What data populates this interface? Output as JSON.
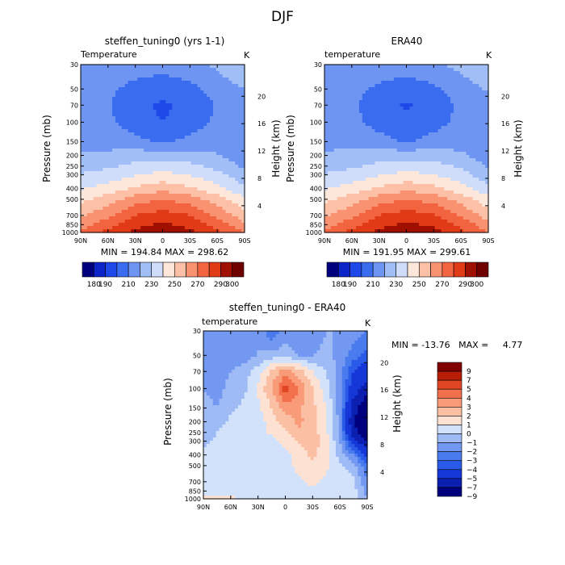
{
  "figure_title": "DJF",
  "chart_data": [
    {
      "type": "heatmap",
      "title": "steffen_tuning0 (yrs 1-1)",
      "variable_label": "Temperature",
      "units_label": "K",
      "ylabel": "Pressure (mb)",
      "ylabel_right": "Height (km)",
      "x_ticks": [
        "90N",
        "60N",
        "30N",
        "0",
        "30S",
        "60S",
        "90S"
      ],
      "y_ticks": [
        "30",
        "50",
        "70",
        "100",
        "150",
        "200",
        "250",
        "300",
        "400",
        "500",
        "700",
        "850",
        "1000"
      ],
      "y_ticks_right": [
        "4",
        "8",
        "12",
        "16",
        "20"
      ],
      "x": [
        90,
        60,
        30,
        0,
        -30,
        -60,
        -90
      ],
      "y": [
        1000,
        850,
        700,
        500,
        400,
        300,
        250,
        200,
        150,
        100,
        70,
        50,
        30
      ],
      "z": [
        [
          272,
          283,
          293,
          298,
          293,
          282,
          270
        ],
        [
          265,
          276,
          287,
          292,
          287,
          276,
          262
        ],
        [
          258,
          268,
          280,
          285,
          280,
          268,
          254
        ],
        [
          247,
          255,
          265,
          270,
          265,
          255,
          242
        ],
        [
          239,
          244,
          252,
          257,
          252,
          243,
          232
        ],
        [
          231,
          234,
          239,
          243,
          239,
          233,
          223
        ],
        [
          226,
          228,
          233,
          235,
          233,
          227,
          218
        ],
        [
          221,
          223,
          225,
          226,
          224,
          221,
          213
        ],
        [
          217,
          215,
          213,
          208,
          213,
          215,
          213
        ],
        [
          217,
          212,
          205,
          200,
          205,
          212,
          215
        ],
        [
          216,
          211,
          203,
          198,
          203,
          211,
          216
        ],
        [
          215,
          212,
          207,
          204,
          207,
          214,
          220
        ],
        [
          212,
          215,
          215,
          214,
          217,
          222,
          230
        ]
      ],
      "min_max_label": "MIN = 194.84   MAX = 298.62",
      "legend_levels": [
        "180",
        "190",
        "200",
        "210",
        "220",
        "230",
        "240",
        "250",
        "260",
        "270",
        "280",
        "290",
        "300"
      ],
      "legend_labels": [
        "180",
        "190",
        "210",
        "230",
        "250",
        "270",
        "290",
        "300"
      ]
    },
    {
      "type": "heatmap",
      "title": "ERA40",
      "variable_label": "temperature",
      "units_label": "K",
      "ylabel": "Pressure (mb)",
      "ylabel_right": "Height (km)",
      "x_ticks": [
        "90N",
        "60N",
        "30N",
        "0",
        "30S",
        "60S",
        "90S"
      ],
      "y_ticks": [
        "30",
        "50",
        "70",
        "100",
        "150",
        "200",
        "250",
        "300",
        "400",
        "500",
        "700",
        "850",
        "1000"
      ],
      "y_ticks_right": [
        "4",
        "8",
        "12",
        "16",
        "20"
      ],
      "x": [
        90,
        60,
        30,
        0,
        -30,
        -60,
        -90
      ],
      "y": [
        1000,
        850,
        700,
        500,
        400,
        300,
        250,
        200,
        150,
        100,
        70,
        50,
        30
      ],
      "z": [
        [
          272,
          283,
          293,
          298,
          294,
          283,
          270
        ],
        [
          265,
          276,
          287,
          292,
          288,
          277,
          263
        ],
        [
          258,
          268,
          280,
          285,
          281,
          269,
          255
        ],
        [
          247,
          255,
          265,
          270,
          266,
          256,
          243
        ],
        [
          239,
          244,
          252,
          257,
          253,
          244,
          233
        ],
        [
          231,
          234,
          239,
          243,
          240,
          234,
          224
        ],
        [
          226,
          228,
          233,
          235,
          234,
          228,
          219
        ],
        [
          221,
          223,
          225,
          226,
          225,
          222,
          214
        ],
        [
          218,
          216,
          214,
          209,
          214,
          216,
          214
        ],
        [
          218,
          213,
          206,
          201,
          206,
          213,
          216
        ],
        [
          217,
          212,
          204,
          199,
          204,
          212,
          217
        ],
        [
          216,
          213,
          208,
          205,
          208,
          215,
          221
        ],
        [
          213,
          216,
          216,
          215,
          218,
          223,
          231
        ]
      ],
      "min_max_label": "MIN = 191.95   MAX = 299.61",
      "legend_levels": [
        "180",
        "190",
        "200",
        "210",
        "220",
        "230",
        "240",
        "250",
        "260",
        "270",
        "280",
        "290",
        "300"
      ],
      "legend_labels": [
        "180",
        "190",
        "210",
        "230",
        "250",
        "270",
        "290",
        "300"
      ]
    },
    {
      "type": "heatmap",
      "title": "steffen_tuning0 - ERA40",
      "variable_label": "temperature",
      "units_label": "K",
      "ylabel": "Pressure (mb)",
      "ylabel_right": "Height (km)",
      "x_ticks": [
        "90N",
        "60N",
        "30N",
        "0",
        "30S",
        "60S",
        "90S"
      ],
      "y_ticks": [
        "30",
        "50",
        "70",
        "100",
        "150",
        "200",
        "250",
        "300",
        "400",
        "500",
        "700",
        "850",
        "1000"
      ],
      "y_ticks_right": [
        "4",
        "8",
        "12",
        "16",
        "20"
      ],
      "x": [
        90,
        75,
        60,
        45,
        30,
        15,
        0,
        -15,
        -30,
        -45,
        -60,
        -75,
        -90
      ],
      "y": [
        1000,
        850,
        700,
        500,
        400,
        300,
        250,
        200,
        150,
        100,
        70,
        50,
        30
      ],
      "z": [
        [
          0.5,
          0.8,
          0.3,
          -0.5,
          -0.5,
          -0.3,
          -0.3,
          -0.2,
          -0.3,
          -0.5,
          -0.5,
          -0.5,
          -2
        ],
        [
          -0.5,
          -0.5,
          -0.5,
          -0.5,
          -0.5,
          -0.3,
          -0.3,
          -0.2,
          -0.3,
          -0.5,
          -0.5,
          -0.5,
          -2.5
        ],
        [
          -0.5,
          -0.5,
          -0.5,
          -0.5,
          -0.5,
          -0.5,
          -0.5,
          -0.2,
          0.3,
          -0.3,
          -0.5,
          -0.8,
          -3
        ],
        [
          -0.5,
          -0.5,
          -0.5,
          -0.5,
          -0.5,
          -0.5,
          -0.3,
          0.3,
          0.8,
          0.3,
          -0.8,
          -1.5,
          -4
        ],
        [
          -0.8,
          -0.5,
          -0.5,
          -0.5,
          -0.5,
          -0.5,
          -0.3,
          0.5,
          1.2,
          0.5,
          -1.5,
          -3,
          -5.5
        ],
        [
          -1.2,
          -0.8,
          -0.5,
          -0.5,
          -0.5,
          -0.3,
          0.3,
          1.2,
          1.5,
          0.5,
          -2,
          -6,
          -9
        ],
        [
          -1.5,
          -1,
          -0.5,
          -0.5,
          -0.5,
          0.2,
          0.8,
          1.8,
          1.5,
          0.3,
          -2.5,
          -8,
          -11
        ],
        [
          -1.5,
          -1.5,
          -0.8,
          -0.5,
          -0.5,
          0.5,
          1.5,
          2.2,
          1.5,
          0.2,
          -2.5,
          -9,
          -12
        ],
        [
          -1.5,
          -2,
          -1.2,
          -0.8,
          -0.3,
          1,
          2.5,
          2.2,
          1.3,
          0,
          -2.5,
          -8,
          -11
        ],
        [
          -2,
          -2.5,
          -1.5,
          -1.2,
          0.2,
          2,
          4.5,
          3,
          1,
          -0.5,
          -2.5,
          -6,
          -8
        ],
        [
          -2.5,
          -2.5,
          -2,
          -1.5,
          -0.5,
          1.2,
          2.5,
          1.5,
          0,
          -1,
          -2.5,
          -5,
          -6
        ],
        [
          -3,
          -2,
          -2.5,
          -2.5,
          -2,
          -1.5,
          -1.5,
          -2,
          -2,
          -1.8,
          -2.2,
          -3.5,
          -4.5
        ],
        [
          -3,
          -2,
          -3,
          -3,
          -2,
          -4,
          -2.5,
          -3,
          -2.5,
          -2,
          -2,
          -2.5,
          -3
        ]
      ],
      "min_max_label": "MIN = -13.76   MAX =     4.77",
      "legend_levels": [
        "-9",
        "-7",
        "-5",
        "-4",
        "-3",
        "-2",
        "-1",
        "0",
        "1",
        "2",
        "3",
        "4",
        "5",
        "7",
        "9"
      ],
      "legend_labels": [
        "9",
        "7",
        "5",
        "4",
        "3",
        "2",
        "1",
        "0",
        "−1",
        "−2",
        "−3",
        "−4",
        "−5",
        "−7",
        "−9"
      ]
    }
  ],
  "colors": {
    "abs_palette": [
      "#00007e",
      "#0b25c8",
      "#1f48e8",
      "#3a6cf0",
      "#6f95f2",
      "#a1bef6",
      "#cfddfa",
      "#fde6da",
      "#fcc0a6",
      "#f99271",
      "#f26440",
      "#e13a17",
      "#a01000",
      "#6e0000"
    ],
    "diff_palette": [
      "#00007e",
      "#0b1fb0",
      "#1537d8",
      "#2a5be8",
      "#4a7bee",
      "#7298f1",
      "#9ebbf5",
      "#d2e2fa",
      "#fde2d4",
      "#fbc0a4",
      "#f99a78",
      "#f2704c",
      "#e04624",
      "#b81e06",
      "#800000"
    ]
  }
}
